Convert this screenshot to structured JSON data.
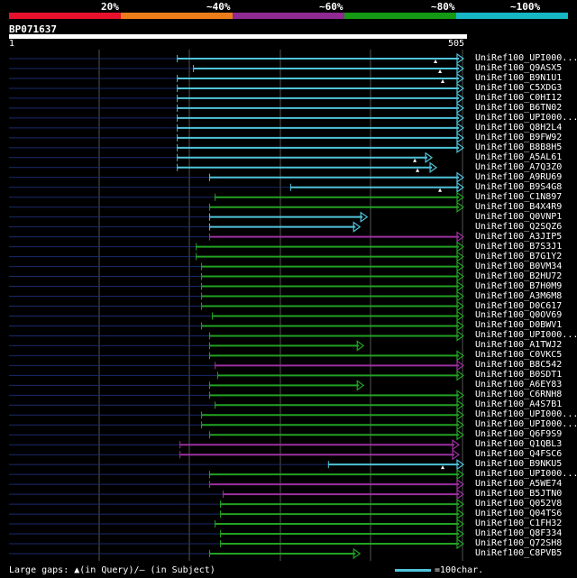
{
  "legend": {
    "labels": [
      "20%",
      "~40%",
      "~60%",
      "~80%",
      "~100%"
    ],
    "colors": [
      "#e8112d",
      "#ed7d1a",
      "#8e2a91",
      "#159a15",
      "#17b6c4"
    ]
  },
  "query": {
    "name": "BP071637",
    "start": "1",
    "end": "505"
  },
  "hits": [
    {
      "name": "UniRef100_UPI000...",
      "start": 188,
      "end": 505,
      "color": "cyan",
      "gaps": [
        475
      ]
    },
    {
      "name": "UniRef100_Q9ASX5",
      "start": 206,
      "end": 505,
      "color": "cyan",
      "gaps": [
        480
      ]
    },
    {
      "name": "UniRef100_B9N1U1",
      "start": 188,
      "end": 505,
      "color": "cyan",
      "gaps": [
        483
      ]
    },
    {
      "name": "UniRef100_C5XDG3",
      "start": 188,
      "end": 505,
      "color": "cyan",
      "gaps": []
    },
    {
      "name": "UniRef100_C0HI12",
      "start": 188,
      "end": 505,
      "color": "cyan",
      "gaps": []
    },
    {
      "name": "UniRef100_B6TN02",
      "start": 188,
      "end": 505,
      "color": "cyan",
      "gaps": []
    },
    {
      "name": "UniRef100_UPI000...",
      "start": 188,
      "end": 505,
      "color": "cyan",
      "gaps": []
    },
    {
      "name": "UniRef100_Q8H2L4",
      "start": 188,
      "end": 505,
      "color": "cyan",
      "gaps": []
    },
    {
      "name": "UniRef100_B9FW92",
      "start": 188,
      "end": 505,
      "color": "cyan",
      "gaps": []
    },
    {
      "name": "UniRef100_B8B8H5",
      "start": 188,
      "end": 505,
      "color": "cyan",
      "gaps": []
    },
    {
      "name": "UniRef100_A5AL61",
      "start": 188,
      "end": 470,
      "color": "cyan",
      "gaps": [
        452
      ]
    },
    {
      "name": "UniRef100_A7Q3Z0",
      "start": 188,
      "end": 475,
      "color": "cyan",
      "gaps": [
        455
      ]
    },
    {
      "name": "UniRef100_A9RU69",
      "start": 224,
      "end": 505,
      "color": "cyan",
      "gaps": []
    },
    {
      "name": "UniRef100_B9S4G8",
      "start": 314,
      "end": 505,
      "color": "cyan",
      "gaps": [
        480
      ]
    },
    {
      "name": "UniRef100_C1N897",
      "start": 230,
      "end": 505,
      "color": "green",
      "gaps": []
    },
    {
      "name": "UniRef100_B4X4R9",
      "start": 224,
      "end": 505,
      "color": "green",
      "gaps": []
    },
    {
      "name": "UniRef100_Q0VNP1",
      "start": 224,
      "end": 398,
      "color": "cyan",
      "gaps": []
    },
    {
      "name": "UniRef100_Q2SQZ6",
      "start": 224,
      "end": 390,
      "color": "cyan",
      "gaps": []
    },
    {
      "name": "UniRef100_A3JIP5",
      "start": 224,
      "end": 505,
      "color": "purple",
      "gaps": []
    },
    {
      "name": "UniRef100_B7S3J1",
      "start": 209,
      "end": 505,
      "color": "green",
      "gaps": []
    },
    {
      "name": "UniRef100_B7G1Y2",
      "start": 209,
      "end": 505,
      "color": "green",
      "gaps": []
    },
    {
      "name": "UniRef100_B0VM34",
      "start": 215,
      "end": 505,
      "color": "green",
      "gaps": []
    },
    {
      "name": "UniRef100_B2HU72",
      "start": 215,
      "end": 505,
      "color": "green",
      "gaps": []
    },
    {
      "name": "UniRef100_B7H0M9",
      "start": 215,
      "end": 505,
      "color": "green",
      "gaps": []
    },
    {
      "name": "UniRef100_A3M6M8",
      "start": 215,
      "end": 505,
      "color": "green",
      "gaps": []
    },
    {
      "name": "UniRef100_D0C617",
      "start": 215,
      "end": 505,
      "color": "green",
      "gaps": []
    },
    {
      "name": "UniRef100_Q0OV69",
      "start": 227,
      "end": 505,
      "color": "green",
      "gaps": []
    },
    {
      "name": "UniRef100_D0BWV1",
      "start": 215,
      "end": 505,
      "color": "green",
      "gaps": []
    },
    {
      "name": "UniRef100_UPI000...",
      "start": 224,
      "end": 505,
      "color": "green",
      "gaps": []
    },
    {
      "name": "UniRef100_A1TWJ2",
      "start": 224,
      "end": 394,
      "color": "green",
      "gaps": []
    },
    {
      "name": "UniRef100_C0VKC5",
      "start": 224,
      "end": 505,
      "color": "green",
      "gaps": []
    },
    {
      "name": "UniRef100_B8C542",
      "start": 230,
      "end": 505,
      "color": "purple",
      "gaps": []
    },
    {
      "name": "UniRef100_B0SDT1",
      "start": 233,
      "end": 505,
      "color": "green",
      "gaps": []
    },
    {
      "name": "UniRef100_A6EY83",
      "start": 224,
      "end": 394,
      "color": "green",
      "gaps": []
    },
    {
      "name": "UniRef100_C6RNH8",
      "start": 224,
      "end": 505,
      "color": "green",
      "gaps": []
    },
    {
      "name": "UniRef100_A4S7B1",
      "start": 230,
      "end": 505,
      "color": "green",
      "gaps": []
    },
    {
      "name": "UniRef100_UPI000...",
      "start": 215,
      "end": 505,
      "color": "green",
      "gaps": []
    },
    {
      "name": "UniRef100_UPI000...",
      "start": 215,
      "end": 505,
      "color": "green",
      "gaps": []
    },
    {
      "name": "UniRef100_Q6F9S9",
      "start": 224,
      "end": 505,
      "color": "green",
      "gaps": []
    },
    {
      "name": "UniRef100_Q1QBL3",
      "start": 191,
      "end": 500,
      "color": "purple",
      "gaps": []
    },
    {
      "name": "UniRef100_Q4FSC6",
      "start": 191,
      "end": 500,
      "color": "purple",
      "gaps": []
    },
    {
      "name": "UniRef100_B9NKU5",
      "start": 356,
      "end": 505,
      "color": "cyan",
      "gaps": [
        483
      ]
    },
    {
      "name": "UniRef100_UPI000...",
      "start": 224,
      "end": 505,
      "color": "green",
      "gaps": []
    },
    {
      "name": "UniRef100_A5WE74",
      "start": 224,
      "end": 505,
      "color": "purple",
      "gaps": []
    },
    {
      "name": "UniRef100_B5JTN0",
      "start": 239,
      "end": 505,
      "color": "purple",
      "gaps": []
    },
    {
      "name": "UniRef100_Q052V8",
      "start": 236,
      "end": 505,
      "color": "green",
      "gaps": []
    },
    {
      "name": "UniRef100_Q04TS6",
      "start": 236,
      "end": 505,
      "color": "green",
      "gaps": []
    },
    {
      "name": "UniRef100_C1FH32",
      "start": 230,
      "end": 505,
      "color": "green",
      "gaps": []
    },
    {
      "name": "UniRef100_Q8F334",
      "start": 236,
      "end": 505,
      "color": "green",
      "gaps": []
    },
    {
      "name": "UniRef100_Q72SH8",
      "start": 236,
      "end": 505,
      "color": "green",
      "gaps": []
    },
    {
      "name": "UniRef100_C8PVB5",
      "start": 224,
      "end": 390,
      "color": "green",
      "gaps": []
    }
  ],
  "footer": {
    "gaps_text": "Large gaps: ▲(in Query)/– (in Subject)",
    "scale_text": "=100char."
  },
  "colors": {
    "cyan": "#4fc3d9",
    "green": "#22a122",
    "purple": "#9c2fa0",
    "query": "#ffffff",
    "navy": "#1a2a6c"
  }
}
